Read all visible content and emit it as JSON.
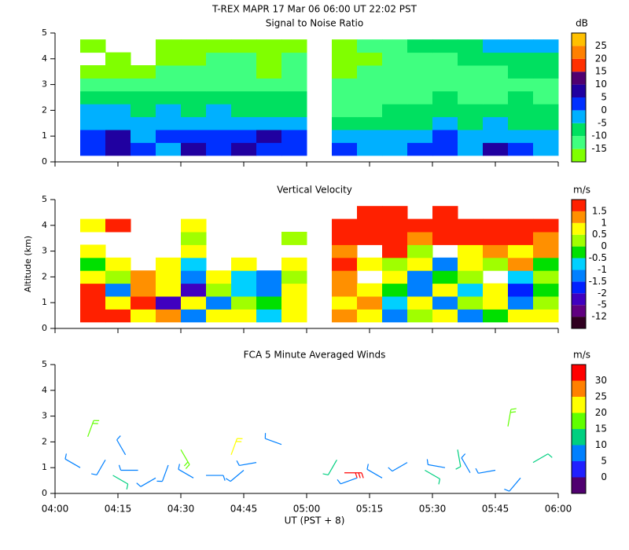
{
  "title": "T-REX   MAPR 17 Mar 06   06:00 UT   22:02   PST",
  "x_axis": {
    "label": "UT  (PST + 8)",
    "xlim": [
      4,
      6
    ],
    "xticks": [
      {
        "value": 4,
        "label": "04:00"
      },
      {
        "value": 4.25,
        "label": "04:15"
      },
      {
        "value": 4.5,
        "label": "04:30"
      },
      {
        "value": 4.75,
        "label": "04:45"
      },
      {
        "value": 5,
        "label": "05:00"
      },
      {
        "value": 5.25,
        "label": "05:15"
      },
      {
        "value": 5.5,
        "label": "05:30"
      },
      {
        "value": 5.75,
        "label": "05:45"
      },
      {
        "value": 6,
        "label": "06:00"
      }
    ]
  },
  "chart_data": [
    {
      "type": "heatmap",
      "title": "Signal to Noise Ratio",
      "units": "dB",
      "ylim": [
        0,
        5
      ],
      "yticks": [
        0,
        1,
        2,
        3,
        4,
        5
      ],
      "x": [
        4.15,
        4.25,
        4.35,
        4.45,
        4.55,
        4.65,
        4.75,
        4.85,
        4.95,
        5.15,
        5.25,
        5.35,
        5.45,
        5.55,
        5.65,
        5.75,
        5.85,
        5.95
      ],
      "y": [
        0.5,
        1.0,
        1.5,
        2.0,
        2.5,
        3.0,
        3.5,
        4.0,
        4.5
      ],
      "z": [
        [
          0,
          5,
          3,
          -2,
          5,
          2,
          5,
          3,
          0,
          0,
          -3,
          -2,
          0,
          3,
          -2,
          5,
          0,
          -3
        ],
        [
          2,
          5,
          -2,
          0,
          3,
          0,
          2,
          5,
          0,
          -5,
          -5,
          -3,
          -2,
          0,
          -3,
          -2,
          -5,
          -5
        ],
        [
          -5,
          -2,
          -5,
          -3,
          -5,
          -5,
          -3,
          -5,
          -5,
          -8,
          -10,
          -8,
          -8,
          -5,
          -8,
          -5,
          -8,
          -10
        ],
        [
          -5,
          -5,
          -8,
          -5,
          -8,
          -5,
          -8,
          -8,
          -8,
          -12,
          -12,
          -10,
          -8,
          -10,
          -10,
          -8,
          -8,
          -10
        ],
        [
          -8,
          -10,
          -10,
          -8,
          -10,
          -10,
          -10,
          -10,
          -10,
          -12,
          -12,
          -12,
          -12,
          -10,
          -12,
          -12,
          -10,
          -12
        ],
        [
          -12,
          -12,
          -13,
          -12,
          -12,
          -12,
          -12,
          -12,
          -12,
          -13,
          -13,
          -12,
          -12,
          -12,
          -12,
          -12,
          -12,
          -12
        ],
        [
          -16,
          -16,
          -16,
          -13,
          -13,
          -13,
          -13,
          -16,
          -13,
          -16,
          -13,
          -13,
          -12,
          -12,
          -12,
          -12,
          -10,
          -10
        ],
        [
          null,
          -16,
          null,
          -16,
          -16,
          -13,
          -13,
          -16,
          -13,
          -16,
          -16,
          -13,
          -13,
          -12,
          -8,
          -8,
          -8,
          -8
        ],
        [
          -16,
          null,
          null,
          -16,
          -16,
          -16,
          -16,
          -16,
          -16,
          -16,
          -13,
          -12,
          -10,
          -8,
          -8,
          -5,
          -5,
          -5
        ]
      ],
      "levels": [
        -15,
        -10,
        -5,
        0,
        5,
        10,
        15,
        20,
        25
      ],
      "colors": [
        "#80ff00",
        "#40ff80",
        "#00e060",
        "#00b0ff",
        "#0030ff",
        "#2000a0",
        "#500070",
        "#ff3000",
        "#ff8000",
        "#ffc000"
      ]
    },
    {
      "type": "heatmap",
      "title": "Vertical Velocity",
      "units": "m/s",
      "ylabel": "Altitude (km)",
      "ylim": [
        0,
        5
      ],
      "yticks": [
        0,
        1,
        2,
        3,
        4,
        5
      ],
      "x": [
        4.15,
        4.25,
        4.35,
        4.45,
        4.55,
        4.65,
        4.75,
        4.85,
        4.95,
        5.15,
        5.25,
        5.35,
        5.45,
        5.55,
        5.65,
        5.75,
        5.85,
        5.95
      ],
      "y": [
        0.5,
        1.0,
        1.5,
        2.0,
        2.5,
        3.0,
        3.5,
        4.0,
        4.5
      ],
      "z": [
        [
          1.8,
          1.8,
          0.8,
          1.2,
          -1.2,
          0.5,
          0.8,
          -0.8,
          0.8,
          1.0,
          0.8,
          -1.2,
          0.2,
          0.8,
          -1.2,
          -0.3,
          0.8,
          0.6
        ],
        [
          1.8,
          0.8,
          1.6,
          -2.5,
          0.8,
          -1.2,
          0.2,
          -0.5,
          0.5,
          0.8,
          1.2,
          -0.8,
          0.8,
          -1.2,
          0.3,
          0.8,
          -1.3,
          0.3
        ],
        [
          1.6,
          -1.2,
          1.2,
          0.8,
          -2.5,
          0.2,
          -0.8,
          -1.2,
          0.6,
          1.2,
          0.8,
          -0.3,
          -1.2,
          0.6,
          -0.6,
          0.9,
          -1.6,
          -0.2
        ],
        [
          0.8,
          0.3,
          1.2,
          0.6,
          -1.2,
          0.8,
          -0.7,
          -1.2,
          0.3,
          1.2,
          null,
          0.6,
          -1.5,
          -0.2,
          0.4,
          null,
          -0.8,
          0.3
        ],
        [
          -0.3,
          0.8,
          null,
          0.9,
          -0.6,
          null,
          0.5,
          null,
          0.8,
          1.6,
          0.8,
          0.3,
          0.9,
          -1.2,
          0.6,
          0.3,
          1.2,
          -0.2
        ],
        [
          0.6,
          null,
          null,
          null,
          0.8,
          null,
          null,
          null,
          null,
          1.2,
          null,
          1.6,
          0.2,
          null,
          0.8,
          1.2,
          0.6,
          1.2
        ],
        [
          null,
          null,
          null,
          null,
          0.2,
          null,
          null,
          null,
          0.3,
          1.8,
          1.8,
          1.6,
          1.2,
          1.8,
          1.6,
          1.8,
          1.8,
          1.2
        ],
        [
          0.9,
          1.6,
          null,
          null,
          0.6,
          null,
          null,
          null,
          null,
          1.8,
          1.6,
          1.8,
          1.8,
          1.8,
          1.6,
          1.8,
          1.6,
          1.6
        ],
        [
          null,
          null,
          null,
          null,
          null,
          null,
          null,
          null,
          null,
          null,
          1.8,
          1.6,
          null,
          1.6,
          null,
          null,
          null,
          null
        ]
      ],
      "levels": [
        -12,
        -5,
        -2,
        -1.5,
        -1,
        -0.5,
        0,
        0.5,
        1,
        1.5
      ],
      "colors": [
        "#300020",
        "#600080",
        "#4000c0",
        "#0020ff",
        "#0080ff",
        "#00d0ff",
        "#00e000",
        "#a0ff00",
        "#ffff00",
        "#ff9000",
        "#ff2000"
      ]
    },
    {
      "type": "barbs",
      "title": "FCA 5 Minute Averaged Winds",
      "units": "m/s",
      "ylim": [
        0,
        5
      ],
      "yticks": [
        0,
        1,
        2,
        3,
        4,
        5
      ],
      "x": [
        4.1,
        4.13,
        4.2,
        4.23,
        4.28,
        4.33,
        4.4,
        4.45,
        4.5,
        4.55,
        4.6,
        4.7,
        4.75,
        4.8,
        4.9,
        5.12,
        5.15,
        5.2,
        5.3,
        5.4,
        5.47,
        5.55,
        5.6,
        5.65,
        5.75,
        5.8,
        5.85,
        5.9
      ],
      "y": [
        1.0,
        2.2,
        1.3,
        0.7,
        1.5,
        0.9,
        0.6,
        1.1,
        1.7,
        0.6,
        0.7,
        1.5,
        0.9,
        1.2,
        1.9,
        1.3,
        0.8,
        0.6,
        0.6,
        1.2,
        0.9,
        1.0,
        1.7,
        0.8,
        0.9,
        2.6,
        0.6,
        1.2
      ],
      "speed": [
        8,
        15,
        6,
        13,
        7,
        9,
        6,
        8,
        17,
        8,
        6,
        20,
        8,
        8,
        6,
        14,
        31,
        6,
        6,
        9,
        12,
        6,
        14,
        6,
        8,
        17,
        9,
        12
      ],
      "direction": [
        300,
        20,
        210,
        120,
        330,
        270,
        240,
        200,
        150,
        300,
        90,
        20,
        230,
        260,
        290,
        210,
        90,
        250,
        300,
        240,
        120,
        280,
        170,
        330,
        260,
        10,
        220,
        60
      ],
      "levels": [
        0,
        5,
        10,
        15,
        20,
        25,
        30
      ],
      "colors": [
        "#500070",
        "#2020ff",
        "#0080ff",
        "#00d080",
        "#60ff00",
        "#ffff00",
        "#ff8000",
        "#ff0000"
      ]
    }
  ]
}
